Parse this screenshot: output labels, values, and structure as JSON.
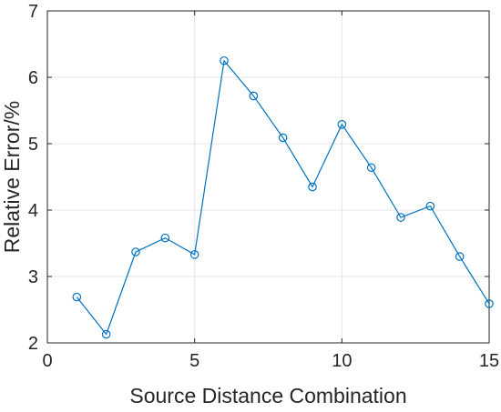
{
  "chart_data": {
    "type": "line",
    "title": "",
    "xlabel": "Source Distance Combination",
    "ylabel": "Relative Error/%",
    "xlim": [
      0,
      15
    ],
    "ylim": [
      2,
      7
    ],
    "xticks": [
      0,
      5,
      10,
      15
    ],
    "yticks": [
      2,
      3,
      4,
      5,
      6,
      7
    ],
    "grid": true,
    "marker": "circle",
    "series_color": "#0072BD",
    "series": [
      {
        "x": [
          1,
          2,
          3,
          4,
          5,
          6,
          7,
          8,
          9,
          10,
          11,
          12,
          13,
          14,
          15
        ],
        "values": [
          2.69,
          2.13,
          3.37,
          3.58,
          3.33,
          6.25,
          5.72,
          5.09,
          4.35,
          5.29,
          4.64,
          3.89,
          4.06,
          3.3,
          2.59
        ]
      }
    ]
  }
}
